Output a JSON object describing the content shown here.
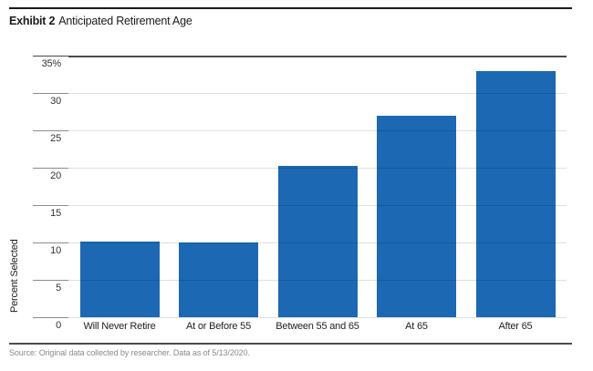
{
  "title": {
    "prefix": "Exhibit 2",
    "text": "Anticipated Retirement Age"
  },
  "source": "Source: Original data collected by researcher. Data as of 5/13/2020.",
  "colors": {
    "bar": "#1C68B2",
    "grid_dark": "#8C8C8C",
    "plot_top": "#4A4A4A"
  },
  "chart_data": {
    "type": "bar",
    "categories": [
      "Will Never Retire",
      "At or Before 55",
      "Between 55 and 65",
      "At 65",
      "After 65"
    ],
    "values": [
      10.1,
      10.0,
      20.2,
      26.9,
      32.9
    ],
    "title": "Exhibit 2 Anticipated Retirement Age",
    "xlabel": "",
    "ylabel": "Percent Selected",
    "ylim": [
      0,
      35
    ],
    "ytick_step": 5,
    "ytick_labels": [
      "0",
      "5",
      "10",
      "15",
      "20",
      "25",
      "30",
      "35%"
    ],
    "grid": true,
    "legend": false,
    "bar_color": "#1C68B2"
  }
}
